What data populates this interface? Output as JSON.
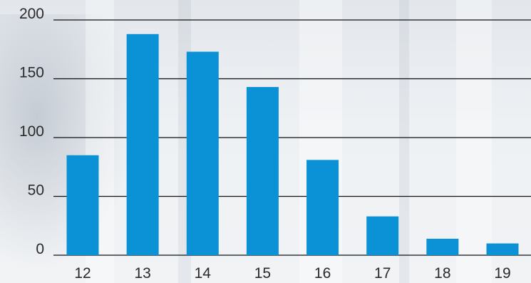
{
  "chart_data": {
    "type": "bar",
    "categories": [
      "12",
      "13",
      "14",
      "15",
      "16",
      "17",
      "18",
      "19"
    ],
    "values": [
      85,
      188,
      173,
      143,
      81,
      33,
      14,
      10
    ],
    "yticks": [
      "0",
      "50",
      "100",
      "150",
      "200"
    ],
    "ylim": [
      0,
      200
    ],
    "grid": true,
    "bar_color": "#0a91d6",
    "title": "",
    "xlabel": "",
    "ylabel": ""
  }
}
